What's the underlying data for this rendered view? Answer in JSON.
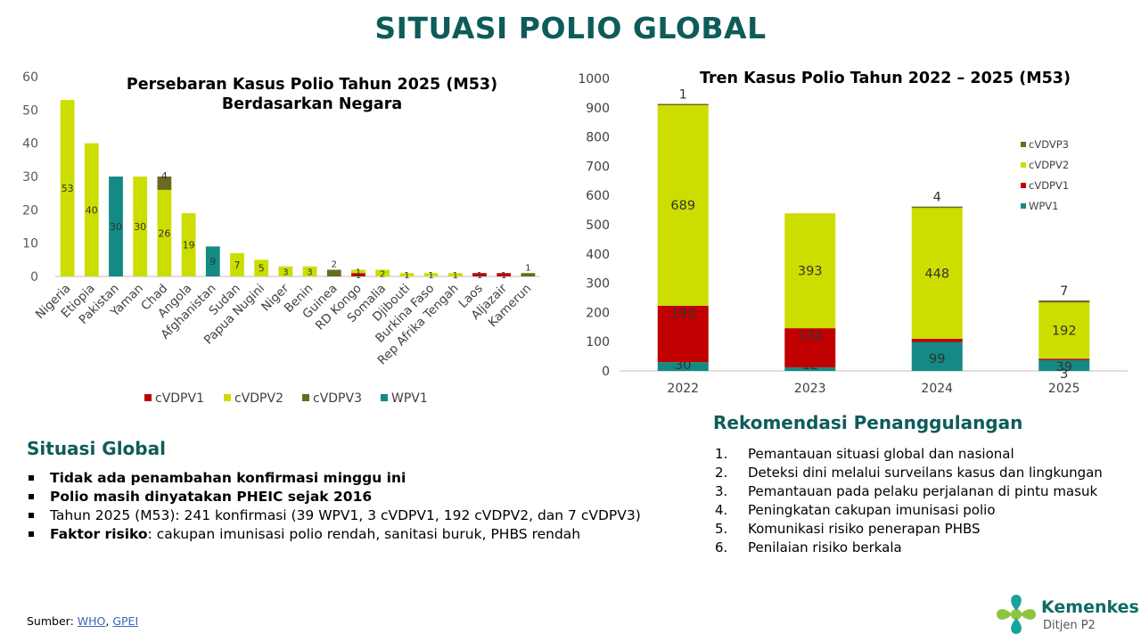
{
  "page_title": "SITUASI POLIO GLOBAL",
  "colors": {
    "title": "#0d5c5a",
    "cVDPV1": "#c00000",
    "cVDPV2": "#ccdd00",
    "cVDPV3": "#6b6b1f",
    "cVDVP3": "#6b6b1f",
    "WPV1": "#138a84"
  },
  "chart_data": [
    {
      "type": "bar",
      "stacked": true,
      "title": "Persebaran Kasus Polio Tahun 2025 (M53) Berdasarkan Negara",
      "title_lines": [
        "Persebaran Kasus Polio Tahun 2025 (M53)",
        "Berdasarkan Negara"
      ],
      "categories": [
        "Nigeria",
        "Etiopia",
        "Pakistan",
        "Yaman",
        "Chad",
        "Angola",
        "Afghanistan",
        "Sudan",
        "Papua Nugini",
        "Niger",
        "Benin",
        "Guinea",
        "RD Kongo",
        "Somalia",
        "Djibouti",
        "Burkina Faso",
        "Rep Afrika Tengah",
        "Laos",
        "Aljazair",
        "Kamerun"
      ],
      "series": [
        {
          "name": "WPV1",
          "values": [
            0,
            0,
            30,
            0,
            0,
            0,
            9,
            0,
            0,
            0,
            0,
            0,
            0,
            0,
            0,
            0,
            0,
            0,
            0,
            0
          ]
        },
        {
          "name": "cVDPV1",
          "values": [
            0,
            0,
            0,
            0,
            0,
            0,
            0,
            0,
            0,
            0,
            0,
            0,
            1,
            0,
            0,
            0,
            0,
            1,
            1,
            0
          ]
        },
        {
          "name": "cVDPV2",
          "values": [
            53,
            40,
            0,
            30,
            26,
            19,
            0,
            7,
            5,
            3,
            3,
            0,
            1,
            2,
            1,
            1,
            1,
            0,
            0,
            0
          ]
        },
        {
          "name": "cVDPV3",
          "values": [
            0,
            0,
            0,
            0,
            4,
            0,
            0,
            0,
            0,
            0,
            0,
            2,
            0,
            0,
            0,
            0,
            0,
            0,
            0,
            1
          ]
        }
      ],
      "ylim": [
        0,
        60
      ],
      "yticks": [
        0,
        10,
        20,
        30,
        40,
        50,
        60
      ],
      "legend": [
        "cVDPV1",
        "cVDPV2",
        "cVDPV3",
        "WPV1"
      ],
      "legend_position": "bottom",
      "grid": false
    },
    {
      "type": "bar",
      "stacked": true,
      "title": "Tren Kasus Polio Tahun 2022 – 2025 (M53)",
      "categories": [
        "2022",
        "2023",
        "2024",
        "2025"
      ],
      "series": [
        {
          "name": "WPV1",
          "values": [
            30,
            12,
            99,
            39
          ]
        },
        {
          "name": "cVDPV1",
          "values": [
            193,
            134,
            11,
            3
          ]
        },
        {
          "name": "cVDPV2",
          "values": [
            689,
            393,
            448,
            192
          ]
        },
        {
          "name": "cVDVP3",
          "values": [
            1,
            0,
            4,
            7
          ]
        }
      ],
      "ylim": [
        0,
        1000
      ],
      "yticks": [
        0,
        100,
        200,
        300,
        400,
        500,
        600,
        700,
        800,
        900,
        1000
      ],
      "legend": [
        "cVDVP3",
        "cVDPV2",
        "cVDPV1",
        "WPV1"
      ],
      "legend_position": "right",
      "grid": false
    }
  ],
  "situasi": {
    "title": "Situasi Global",
    "items": [
      {
        "bold": "Tidak ada penambahan konfirmasi minggu ini",
        "text": ""
      },
      {
        "bold": "Polio masih dinyatakan PHEIC sejak 2016",
        "text": ""
      },
      {
        "bold": "",
        "text": "Tahun 2025 (M53): 241 konfirmasi (39 WPV1, 3 cVDPV1, 192 cVDPV2, dan 7 cVDPV3)"
      },
      {
        "bold": "Faktor risiko",
        "text": ": cakupan imunisasi polio rendah, sanitasi buruk, PHBS rendah"
      }
    ]
  },
  "rekomendasi": {
    "title": "Rekomendasi Penanggulangan",
    "items": [
      {
        "num": "1.",
        "text": "Pemantauan situasi global dan nasional"
      },
      {
        "num": "2.",
        "text": "Deteksi dini melalui surveilans kasus dan lingkungan"
      },
      {
        "num": "3.",
        "text": "Pemantauan pada pelaku perjalanan di pintu masuk"
      },
      {
        "num": "4.",
        "text": "Peningkatan cakupan imunisasi polio"
      },
      {
        "num": "5.",
        "text": "Komunikasi risiko penerapan PHBS"
      },
      {
        "num": "6.",
        "text": "Penilaian risiko berkala"
      }
    ]
  },
  "source": {
    "label": "Sumber: ",
    "links": [
      "WHO",
      "GPEI"
    ],
    "separator": ", "
  },
  "logo": {
    "name": "Kemenkes",
    "sub": "Ditjen P2"
  }
}
